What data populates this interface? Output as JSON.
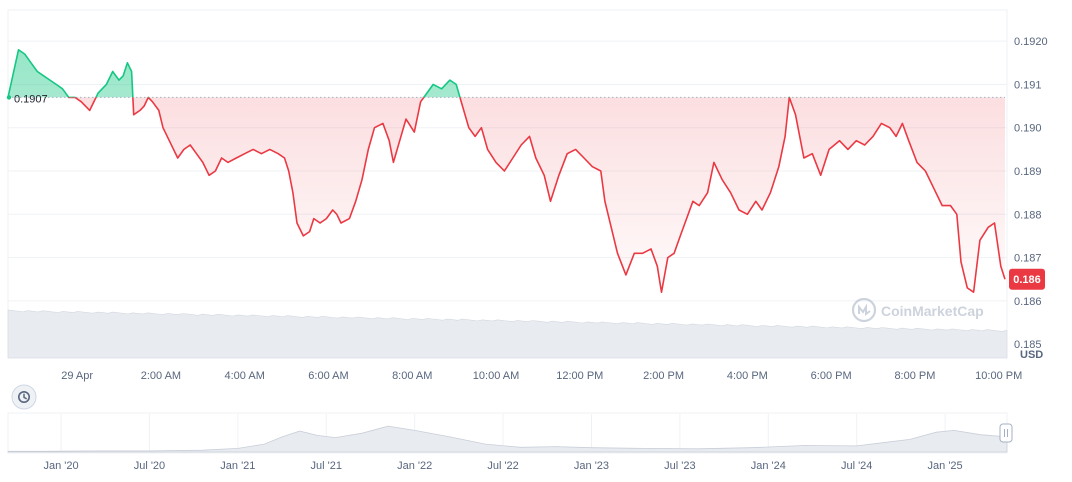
{
  "chart_data": {
    "type": "line",
    "baseline": 0.1907,
    "baseline_label": "0.1907",
    "current_price_label": "0.186",
    "currency_label": "USD",
    "watermark": "CoinMarketCap",
    "y_ticks": [
      "0.1920",
      "0.191",
      "0.190",
      "0.189",
      "0.188",
      "0.187",
      "0.186",
      "0.185"
    ],
    "y_tick_values": [
      0.192,
      0.191,
      0.19,
      0.189,
      0.188,
      0.187,
      0.186,
      0.185
    ],
    "ylim": [
      0.18468,
      0.19272
    ],
    "x_ticks": [
      "29 Apr",
      "2:00 AM",
      "4:00 AM",
      "6:00 AM",
      "8:00 AM",
      "10:00 AM",
      "12:00 PM",
      "2:00 PM",
      "4:00 PM",
      "6:00 PM",
      "8:00 PM",
      "10:00 PM"
    ],
    "x_tick_hours": [
      0,
      2,
      4,
      6,
      8,
      10,
      12,
      14,
      16,
      18,
      20,
      22
    ],
    "xlim_hours": [
      -1.65,
      22.15
    ],
    "series": [
      {
        "points": [
          [
            -1.65,
            0.1907
          ],
          [
            -1.4,
            0.1918
          ],
          [
            -1.25,
            0.1917
          ],
          [
            -1.1,
            0.1915
          ],
          [
            -0.95,
            0.1913
          ],
          [
            -0.8,
            0.1912
          ],
          [
            -0.65,
            0.1911
          ],
          [
            -0.5,
            0.191
          ],
          [
            -0.35,
            0.1909
          ],
          [
            -0.2,
            0.1907
          ],
          [
            -0.05,
            0.1907
          ],
          [
            0.1,
            0.1906
          ],
          [
            0.3,
            0.1904
          ],
          [
            0.5,
            0.1908
          ],
          [
            0.7,
            0.191
          ],
          [
            0.85,
            0.1913
          ],
          [
            1.0,
            0.1911
          ],
          [
            1.1,
            0.1912
          ],
          [
            1.2,
            0.1915
          ],
          [
            1.3,
            0.1913
          ],
          [
            1.35,
            0.1903
          ],
          [
            1.5,
            0.1904
          ],
          [
            1.6,
            0.1905
          ],
          [
            1.7,
            0.1907
          ],
          [
            1.8,
            0.1906
          ],
          [
            1.95,
            0.1904
          ],
          [
            2.05,
            0.19
          ],
          [
            2.2,
            0.1897
          ],
          [
            2.4,
            0.1893
          ],
          [
            2.55,
            0.1895
          ],
          [
            2.7,
            0.1896
          ],
          [
            2.85,
            0.1894
          ],
          [
            3.0,
            0.1892
          ],
          [
            3.15,
            0.1889
          ],
          [
            3.3,
            0.189
          ],
          [
            3.45,
            0.1893
          ],
          [
            3.6,
            0.1892
          ],
          [
            3.8,
            0.1893
          ],
          [
            4.0,
            0.1894
          ],
          [
            4.2,
            0.1895
          ],
          [
            4.4,
            0.1894
          ],
          [
            4.6,
            0.1895
          ],
          [
            4.8,
            0.1894
          ],
          [
            4.95,
            0.1893
          ],
          [
            5.05,
            0.189
          ],
          [
            5.15,
            0.1885
          ],
          [
            5.25,
            0.1878
          ],
          [
            5.4,
            0.1875
          ],
          [
            5.55,
            0.1876
          ],
          [
            5.65,
            0.1879
          ],
          [
            5.8,
            0.1878
          ],
          [
            5.95,
            0.1879
          ],
          [
            6.1,
            0.1881
          ],
          [
            6.2,
            0.188
          ],
          [
            6.3,
            0.1878
          ],
          [
            6.5,
            0.1879
          ],
          [
            6.65,
            0.1883
          ],
          [
            6.8,
            0.1888
          ],
          [
            6.95,
            0.1895
          ],
          [
            7.1,
            0.19
          ],
          [
            7.3,
            0.1901
          ],
          [
            7.45,
            0.1897
          ],
          [
            7.55,
            0.1892
          ],
          [
            7.7,
            0.1897
          ],
          [
            7.85,
            0.1902
          ],
          [
            8.05,
            0.1899
          ],
          [
            8.2,
            0.1906
          ],
          [
            8.35,
            0.1908
          ],
          [
            8.5,
            0.191
          ],
          [
            8.7,
            0.1909
          ],
          [
            8.9,
            0.1911
          ],
          [
            9.05,
            0.191
          ],
          [
            9.2,
            0.1905
          ],
          [
            9.35,
            0.19
          ],
          [
            9.5,
            0.1898
          ],
          [
            9.65,
            0.19
          ],
          [
            9.8,
            0.1895
          ],
          [
            10.0,
            0.1892
          ],
          [
            10.2,
            0.189
          ],
          [
            10.4,
            0.1893
          ],
          [
            10.6,
            0.1896
          ],
          [
            10.8,
            0.1898
          ],
          [
            10.95,
            0.1893
          ],
          [
            11.15,
            0.1889
          ],
          [
            11.3,
            0.1883
          ],
          [
            11.5,
            0.1889
          ],
          [
            11.7,
            0.1894
          ],
          [
            11.9,
            0.1895
          ],
          [
            12.1,
            0.1893
          ],
          [
            12.3,
            0.1891
          ],
          [
            12.5,
            0.189
          ],
          [
            12.6,
            0.1883
          ],
          [
            12.75,
            0.1877
          ],
          [
            12.9,
            0.1871
          ],
          [
            13.1,
            0.1866
          ],
          [
            13.3,
            0.1871
          ],
          [
            13.5,
            0.1871
          ],
          [
            13.7,
            0.1872
          ],
          [
            13.85,
            0.1868
          ],
          [
            13.95,
            0.1862
          ],
          [
            14.1,
            0.187
          ],
          [
            14.25,
            0.1871
          ],
          [
            14.4,
            0.1875
          ],
          [
            14.55,
            0.1879
          ],
          [
            14.7,
            0.1883
          ],
          [
            14.85,
            0.1882
          ],
          [
            15.05,
            0.1885
          ],
          [
            15.2,
            0.1892
          ],
          [
            15.4,
            0.1888
          ],
          [
            15.6,
            0.1885
          ],
          [
            15.8,
            0.1881
          ],
          [
            16.0,
            0.188
          ],
          [
            16.2,
            0.1883
          ],
          [
            16.35,
            0.1881
          ],
          [
            16.55,
            0.1885
          ],
          [
            16.75,
            0.1891
          ],
          [
            16.9,
            0.1898
          ],
          [
            17.0,
            0.1907
          ],
          [
            17.15,
            0.1903
          ],
          [
            17.35,
            0.1893
          ],
          [
            17.55,
            0.1894
          ],
          [
            17.75,
            0.1889
          ],
          [
            17.95,
            0.1895
          ],
          [
            18.2,
            0.1897
          ],
          [
            18.4,
            0.1895
          ],
          [
            18.6,
            0.1897
          ],
          [
            18.8,
            0.1896
          ],
          [
            19.0,
            0.1898
          ],
          [
            19.2,
            0.1901
          ],
          [
            19.4,
            0.19
          ],
          [
            19.55,
            0.1898
          ],
          [
            19.7,
            0.1901
          ],
          [
            19.85,
            0.1897
          ],
          [
            20.05,
            0.1892
          ],
          [
            20.25,
            0.189
          ],
          [
            20.45,
            0.1886
          ],
          [
            20.65,
            0.1882
          ],
          [
            20.85,
            0.1882
          ],
          [
            21.0,
            0.188
          ],
          [
            21.1,
            0.1869
          ],
          [
            21.25,
            0.1863
          ],
          [
            21.4,
            0.1862
          ],
          [
            21.55,
            0.1874
          ],
          [
            21.75,
            0.1877
          ],
          [
            21.9,
            0.1878
          ],
          [
            22.05,
            0.1868
          ],
          [
            22.15,
            0.1865
          ]
        ]
      }
    ],
    "navigator": {
      "x_ticks": [
        "Jan '20",
        "Jul '20",
        "Jan '21",
        "Jul '21",
        "Jan '22",
        "Jul '22",
        "Jan '23",
        "Jul '23",
        "Jan '24",
        "Jul '24",
        "Jan '25"
      ],
      "x_tick_years": [
        2020.0,
        2020.5,
        2021.0,
        2021.5,
        2022.0,
        2022.5,
        2023.0,
        2023.5,
        2024.0,
        2024.5,
        2025.0
      ],
      "xlim_years": [
        2019.7,
        2025.35
      ],
      "series": [
        {
          "points": [
            [
              2019.7,
              0.02
            ],
            [
              2019.9,
              0.02
            ],
            [
              2020.2,
              0.03
            ],
            [
              2020.5,
              0.03
            ],
            [
              2020.8,
              0.05
            ],
            [
              2021.0,
              0.1
            ],
            [
              2021.15,
              0.22
            ],
            [
              2021.25,
              0.42
            ],
            [
              2021.35,
              0.58
            ],
            [
              2021.45,
              0.46
            ],
            [
              2021.55,
              0.4
            ],
            [
              2021.7,
              0.52
            ],
            [
              2021.85,
              0.72
            ],
            [
              2022.0,
              0.6
            ],
            [
              2022.2,
              0.42
            ],
            [
              2022.4,
              0.22
            ],
            [
              2022.6,
              0.13
            ],
            [
              2022.8,
              0.15
            ],
            [
              2023.0,
              0.12
            ],
            [
              2023.3,
              0.1
            ],
            [
              2023.6,
              0.09
            ],
            [
              2023.9,
              0.12
            ],
            [
              2024.2,
              0.18
            ],
            [
              2024.5,
              0.17
            ],
            [
              2024.8,
              0.35
            ],
            [
              2024.95,
              0.55
            ],
            [
              2025.05,
              0.6
            ],
            [
              2025.2,
              0.48
            ],
            [
              2025.35,
              0.42
            ]
          ]
        }
      ]
    }
  }
}
